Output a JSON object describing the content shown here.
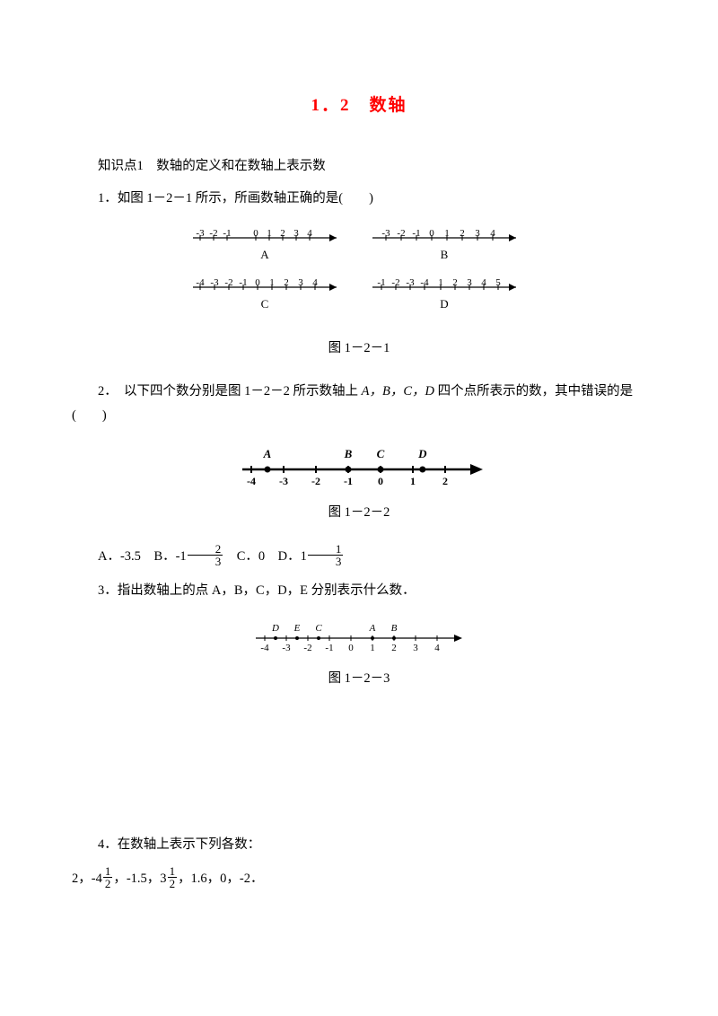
{
  "title": "1．2　数轴",
  "knowledge": "知识点1　数轴的定义和在数轴上表示数",
  "q1": {
    "stem": "1．如图 1－2－1 所示，所画数轴正确的是(　　)",
    "fig": {
      "caption": "图 1－2－1",
      "lines": {
        "A": {
          "labels": [
            "-3",
            "-2",
            "-1",
            "",
            "0",
            "1",
            "2",
            "3",
            "4"
          ],
          "tag": "A"
        },
        "B": {
          "labels": [
            "-3",
            "-2",
            "-1",
            "0",
            "1",
            "2",
            "3",
            "4"
          ],
          "tag": "B"
        },
        "C": {
          "labels": [
            "-4",
            "-3",
            "-2",
            "-1",
            "0",
            "1",
            "2",
            "3",
            "4"
          ],
          "tag": "C"
        },
        "D": {
          "labels": [
            "-1",
            "-2",
            "-3",
            "-4",
            "1",
            "2",
            "3",
            "4",
            "5"
          ],
          "tag": "D"
        }
      }
    }
  },
  "q2": {
    "stem_a": "2．　以下四个数分别是图 1－2－2 所示数轴上",
    "stem_b": "四个点所表示的数，其中错误的是(　　)",
    "points_text": "A，B，C，D",
    "answers": {
      "A": "A．-3.5",
      "B": "B．-1",
      "C": "C．0",
      "D": "D．1"
    },
    "fig": {
      "caption": "图 1－2－2",
      "ticks": [
        -4,
        -3,
        -2,
        -1,
        0,
        1,
        2
      ],
      "points": [
        {
          "label": "A",
          "x": -3.5
        },
        {
          "label": "B",
          "x": -1
        },
        {
          "label": "C",
          "x": 0
        },
        {
          "label": "D",
          "x": 1.3
        }
      ]
    }
  },
  "q3": {
    "stem": "3．指出数轴上的点 A，B，C，D，E 分别表示什么数．",
    "fig": {
      "caption": "图 1－2－3",
      "ticks": [
        -4,
        -3,
        -2,
        -1,
        0,
        1,
        2,
        3,
        4
      ],
      "points": [
        {
          "label": "D",
          "x": -3.5
        },
        {
          "label": "E",
          "x": -2.5
        },
        {
          "label": "C",
          "x": -1.5
        },
        {
          "label": "A",
          "x": 1
        },
        {
          "label": "B",
          "x": 2
        }
      ]
    }
  },
  "q4": {
    "stem": "4．在数轴上表示下列各数：",
    "numbers": "2，-4½，-1.5，3½，1.6，0，-2．",
    "list_plain": [
      "2，-4",
      "，-1.5，3",
      "，1.6，0，-2．"
    ]
  },
  "style": {
    "title_color": "#ff0000",
    "text_color": "#000000",
    "bg": "#ffffff",
    "font_main": "SimSun",
    "fontsize_body": 14.5,
    "fontsize_title": 19,
    "line_stroke": "#000000",
    "line_width": 1.2
  }
}
